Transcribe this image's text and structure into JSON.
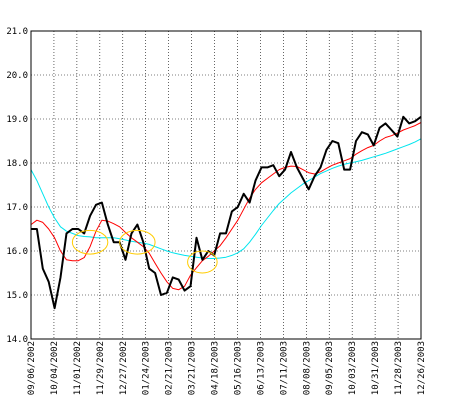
{
  "chart_data": {
    "type": "line",
    "title": "",
    "xlabel": "",
    "ylabel": "",
    "ylim": [
      14.0,
      21.0
    ],
    "yticks": [
      "14.0",
      "15.0",
      "16.0",
      "17.0",
      "18.0",
      "19.0",
      "20.0",
      "21.0"
    ],
    "xticks": [
      "09/06/2002",
      "10/04/2002",
      "11/01/2002",
      "11/29/2002",
      "12/27/2002",
      "01/24/2003",
      "02/21/2003",
      "03/21/2003",
      "04/18/2003",
      "05/16/2003",
      "06/13/2003",
      "07/11/2003",
      "08/08/2003",
      "09/05/2003",
      "10/03/2003",
      "10/31/2003",
      "11/28/2003",
      "12/26/2003"
    ],
    "grid": true,
    "series": [
      {
        "color": "#000000",
        "values": [
          16.5,
          16.5,
          15.6,
          15.3,
          14.7,
          15.4,
          16.4,
          16.5,
          16.5,
          16.4,
          16.8,
          17.05,
          17.1,
          16.6,
          16.2,
          16.2,
          15.8,
          16.4,
          16.6,
          16.2,
          15.6,
          15.5,
          15.0,
          15.05,
          15.4,
          15.35,
          15.1,
          15.2,
          16.3,
          15.8,
          16.0,
          15.9,
          16.4,
          16.4,
          16.9,
          17.0,
          17.3,
          17.1,
          17.6,
          17.9,
          17.9,
          17.95,
          17.7,
          17.85,
          18.25,
          17.9,
          17.65,
          17.4,
          17.7,
          17.9,
          18.3,
          18.5,
          18.45,
          17.85,
          17.85,
          18.5,
          18.7,
          18.65,
          18.4,
          18.8,
          18.9,
          18.75,
          18.6,
          19.05,
          18.9,
          18.95,
          19.05
        ]
      },
      {
        "color": "#ff0000",
        "values": [
          16.6,
          16.7,
          16.65,
          16.5,
          16.3,
          16.0,
          15.8,
          15.78,
          15.78,
          15.85,
          16.1,
          16.45,
          16.7,
          16.68,
          16.62,
          16.55,
          16.42,
          16.3,
          16.2,
          16.1,
          15.95,
          15.72,
          15.5,
          15.3,
          15.15,
          15.12,
          15.2,
          15.45,
          15.62,
          15.78,
          15.88,
          16.0,
          16.12,
          16.3,
          16.5,
          16.7,
          16.95,
          17.2,
          17.4,
          17.55,
          17.65,
          17.75,
          17.85,
          17.9,
          17.93,
          17.92,
          17.85,
          17.78,
          17.75,
          17.8,
          17.88,
          17.95,
          18.0,
          18.05,
          18.1,
          18.2,
          18.28,
          18.35,
          18.4,
          18.5,
          18.58,
          18.62,
          18.68,
          18.75,
          18.8,
          18.85,
          18.92
        ]
      },
      {
        "color": "#00e5ee",
        "values": [
          17.85,
          17.6,
          17.3,
          17.0,
          16.75,
          16.55,
          16.45,
          16.4,
          16.35,
          16.33,
          16.32,
          16.3,
          16.3,
          16.3,
          16.3,
          16.28,
          16.25,
          16.22,
          16.2,
          16.18,
          16.15,
          16.1,
          16.05,
          16.0,
          15.96,
          15.93,
          15.9,
          15.88,
          15.86,
          15.84,
          15.83,
          15.83,
          15.84,
          15.86,
          15.9,
          15.96,
          16.05,
          16.2,
          16.38,
          16.58,
          16.75,
          16.92,
          17.08,
          17.2,
          17.32,
          17.42,
          17.52,
          17.6,
          17.68,
          17.76,
          17.82,
          17.88,
          17.93,
          17.97,
          18.0,
          18.03,
          18.06,
          18.1,
          18.14,
          18.18,
          18.22,
          18.27,
          18.32,
          18.37,
          18.42,
          18.48,
          18.55
        ]
      }
    ],
    "annotations": [
      {
        "shape": "ellipse",
        "color": "#ffcc00",
        "x_index": 10,
        "y": 16.2,
        "rx_index": 3,
        "ry": 0.27
      },
      {
        "shape": "ellipse",
        "color": "#ffcc00",
        "x_index": 18,
        "y": 16.2,
        "rx_index": 3,
        "ry": 0.27
      },
      {
        "shape": "ellipse",
        "color": "#ffcc00",
        "x_index": 29,
        "y": 15.75,
        "rx_index": 2.5,
        "ry": 0.25
      }
    ]
  }
}
